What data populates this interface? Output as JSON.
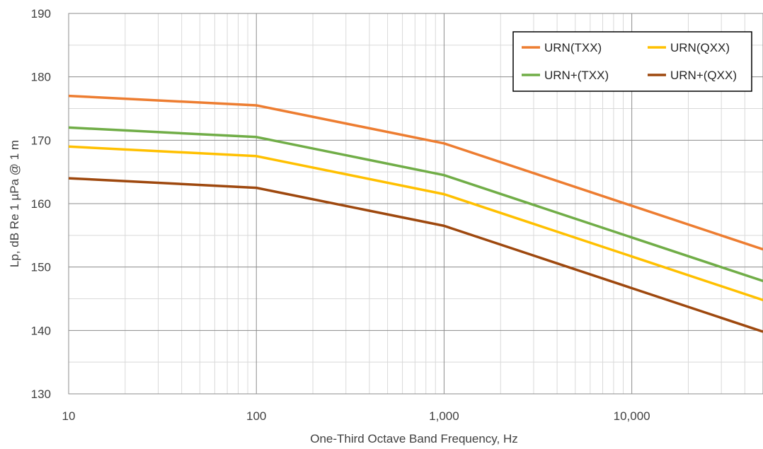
{
  "chart_data": {
    "type": "line",
    "title": "",
    "xlabel": "One-Third Octave Band Frequency, Hz",
    "ylabel": "Lp, dB Re 1 µPa @ 1 m",
    "x_scale": "log",
    "xlim": [
      10,
      50000
    ],
    "ylim": [
      130,
      190
    ],
    "x_ticks": [
      10,
      100,
      1000,
      10000
    ],
    "x_tick_labels": [
      "10",
      "100",
      "1,000",
      "10,000"
    ],
    "y_ticks": [
      130,
      140,
      150,
      160,
      170,
      180,
      190
    ],
    "y_tick_labels": [
      "130",
      "140",
      "150",
      "160",
      "170",
      "180",
      "190"
    ],
    "grid": true,
    "legend_position": "top-right",
    "series": [
      {
        "name": "URN(TXX)",
        "color": "#ED7D31",
        "x": [
          10,
          100,
          1000,
          50000
        ],
        "y": [
          177,
          175.5,
          169.5,
          152.8
        ]
      },
      {
        "name": "URN(QXX)",
        "color": "#FFC000",
        "x": [
          10,
          100,
          1000,
          50000
        ],
        "y": [
          169,
          167.5,
          161.5,
          144.8
        ]
      },
      {
        "name": "URN+(TXX)",
        "color": "#70AD47",
        "x": [
          10,
          100,
          1000,
          50000
        ],
        "y": [
          172,
          170.5,
          164.5,
          147.8
        ]
      },
      {
        "name": "URN+(QXX)",
        "color": "#9E480E",
        "x": [
          10,
          100,
          1000,
          50000
        ],
        "y": [
          164,
          162.5,
          156.5,
          139.8
        ]
      }
    ]
  }
}
